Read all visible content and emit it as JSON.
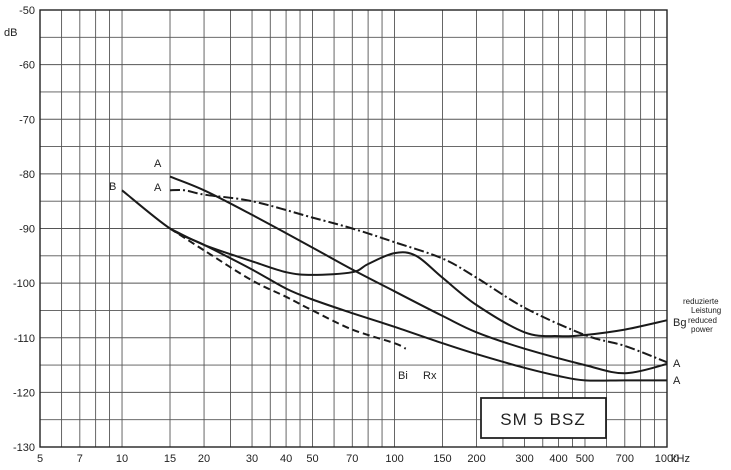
{
  "chart_data": {
    "type": "line",
    "title": "SM 5 BSZ",
    "xlabel": "kHz",
    "ylabel": "dB",
    "x_scale": "log",
    "xlim": [
      5,
      1000
    ],
    "ylim": [
      -130,
      -50
    ],
    "grid": true,
    "x_tick_labels": [
      "5",
      "7",
      "10",
      "15",
      "20",
      "30",
      "40",
      "50",
      "70",
      "100",
      "150",
      "200",
      "300",
      "400",
      "500",
      "700",
      "1000"
    ],
    "y_tick_labels": [
      "-50",
      "-60",
      "-70",
      "-80",
      "-90",
      "-100",
      "-110",
      "-120",
      "-130"
    ],
    "series": [
      {
        "name": "B",
        "style": "solid",
        "x": [
          10,
          15,
          20,
          30,
          40,
          50,
          70,
          100,
          150,
          200,
          300,
          400,
          500,
          700,
          1000
        ],
        "y": [
          -83,
          -90,
          -93,
          -97.5,
          -101,
          -103,
          -105.5,
          -108,
          -111,
          -113,
          -115.5,
          -117,
          -117.8,
          -117.8,
          -117.8
        ]
      },
      {
        "name": "A",
        "style": "solid",
        "x": [
          15,
          20,
          30,
          50,
          70,
          100,
          150,
          200,
          300,
          500,
          700,
          1000
        ],
        "y": [
          -80.5,
          -83,
          -87.5,
          -93.5,
          -97.5,
          -101.5,
          -106,
          -109,
          -112,
          -115,
          -116.5,
          -114.8
        ]
      },
      {
        "name": "A",
        "style": "dash-dot",
        "x": [
          15,
          17,
          20,
          30,
          50,
          70,
          100,
          150,
          200,
          300,
          500,
          700,
          1000
        ],
        "y": [
          -83,
          -83,
          -83.8,
          -85,
          -88,
          -90,
          -92.5,
          -95.5,
          -99,
          -104.5,
          -109.5,
          -111.5,
          -114.5
        ]
      },
      {
        "name": "Bg",
        "style": "solid",
        "x": [
          15,
          20,
          30,
          40,
          50,
          70,
          80,
          100,
          120,
          150,
          200,
          300,
          400,
          500,
          700,
          1000
        ],
        "y": [
          -90,
          -93,
          -96,
          -98,
          -98.5,
          -98,
          -96.5,
          -94.5,
          -95,
          -99,
          -104,
          -109,
          -109.7,
          -109.5,
          -108.5,
          -106.8
        ]
      },
      {
        "name": "Bi",
        "style": "dashed",
        "x": [
          15,
          20,
          30,
          40,
          50,
          70,
          100,
          110
        ],
        "y": [
          -90,
          -94,
          -99.5,
          -102.5,
          -105,
          -108.5,
          -111,
          -112
        ]
      }
    ],
    "annotations": [
      "A",
      "A",
      "B",
      "Bi",
      "Rx",
      "Bg",
      "A",
      "A"
    ],
    "note": [
      "reduzierte",
      "Leistung",
      "reduced",
      "power"
    ]
  }
}
